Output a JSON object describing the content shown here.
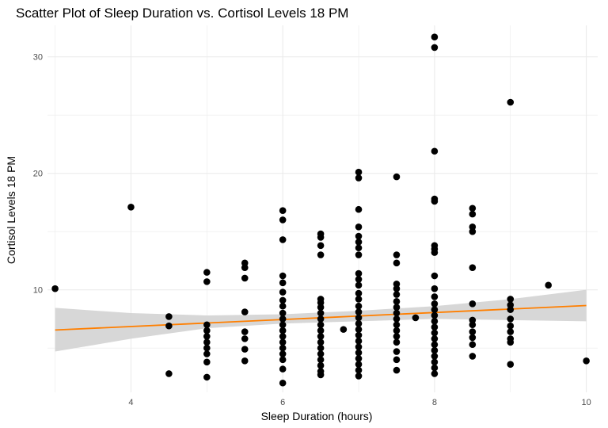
{
  "chart_data": {
    "type": "scatter",
    "title": "Scatter Plot of Sleep Duration vs. Cortisol Levels 18 PM",
    "xlabel": "Sleep Duration (hours)",
    "ylabel": "Cortisol Levels 18 PM",
    "xlim": [
      2.9,
      10.15
    ],
    "ylim": [
      1.2,
      32.7
    ],
    "x_ticks": [
      4,
      6,
      8,
      10
    ],
    "y_ticks": [
      10,
      20,
      30
    ],
    "grid": true,
    "colors": {
      "points": "#000000",
      "trend_line": "#ff7f00",
      "confidence_band": "#d3d3d3",
      "grid": "#ebebeb"
    },
    "points": [
      [
        3,
        10.1
      ],
      [
        4,
        17.1
      ],
      [
        4.5,
        7.7
      ],
      [
        4.5,
        6.9
      ],
      [
        4.5,
        2.8
      ],
      [
        5,
        11.5
      ],
      [
        5,
        10.7
      ],
      [
        5,
        7.0
      ],
      [
        5,
        6.5
      ],
      [
        5,
        6.0
      ],
      [
        5,
        5.5
      ],
      [
        5,
        5.0
      ],
      [
        5,
        4.5
      ],
      [
        5,
        3.8
      ],
      [
        5,
        2.5
      ],
      [
        5.5,
        12.3
      ],
      [
        5.5,
        11.9
      ],
      [
        5.5,
        11.0
      ],
      [
        5.5,
        8.1
      ],
      [
        5.5,
        6.4
      ],
      [
        5.5,
        5.8
      ],
      [
        5.5,
        4.9
      ],
      [
        5.5,
        3.9
      ],
      [
        6,
        16.8
      ],
      [
        6,
        16.0
      ],
      [
        6,
        14.3
      ],
      [
        6,
        11.2
      ],
      [
        6,
        10.6
      ],
      [
        6,
        9.8
      ],
      [
        6,
        9.1
      ],
      [
        6,
        8.6
      ],
      [
        6,
        8.0
      ],
      [
        6,
        7.5
      ],
      [
        6,
        7.0
      ],
      [
        6,
        6.5
      ],
      [
        6,
        6.0
      ],
      [
        6,
        5.5
      ],
      [
        6,
        5.0
      ],
      [
        6,
        4.5
      ],
      [
        6,
        4.0
      ],
      [
        6,
        3.2
      ],
      [
        6,
        2.0
      ],
      [
        6.5,
        14.8
      ],
      [
        6.5,
        14.5
      ],
      [
        6.5,
        13.8
      ],
      [
        6.5,
        13.0
      ],
      [
        6.5,
        9.2
      ],
      [
        6.5,
        8.9
      ],
      [
        6.5,
        8.5
      ],
      [
        6.5,
        8.0
      ],
      [
        6.5,
        7.5
      ],
      [
        6.5,
        7.0
      ],
      [
        6.5,
        6.5
      ],
      [
        6.5,
        6.0
      ],
      [
        6.5,
        5.5
      ],
      [
        6.5,
        5.0
      ],
      [
        6.5,
        4.5
      ],
      [
        6.5,
        4.0
      ],
      [
        6.5,
        3.5
      ],
      [
        6.5,
        3.0
      ],
      [
        6.5,
        2.7
      ],
      [
        6.8,
        6.6
      ],
      [
        7,
        20.1
      ],
      [
        7,
        19.6
      ],
      [
        7,
        16.9
      ],
      [
        7,
        15.4
      ],
      [
        7,
        14.6
      ],
      [
        7,
        14.1
      ],
      [
        7,
        13.6
      ],
      [
        7,
        13.0
      ],
      [
        7,
        11.4
      ],
      [
        7,
        10.9
      ],
      [
        7,
        10.4
      ],
      [
        7,
        9.7
      ],
      [
        7,
        9.2
      ],
      [
        7,
        8.6
      ],
      [
        7,
        8.1
      ],
      [
        7,
        7.6
      ],
      [
        7,
        7.1
      ],
      [
        7,
        6.6
      ],
      [
        7,
        6.1
      ],
      [
        7,
        5.6
      ],
      [
        7,
        5.1
      ],
      [
        7,
        4.6
      ],
      [
        7,
        4.1
      ],
      [
        7,
        3.6
      ],
      [
        7,
        3.1
      ],
      [
        7,
        2.6
      ],
      [
        7.5,
        19.7
      ],
      [
        7.5,
        13.0
      ],
      [
        7.5,
        12.3
      ],
      [
        7.5,
        10.5
      ],
      [
        7.5,
        10.1
      ],
      [
        7.5,
        9.6
      ],
      [
        7.5,
        9.0
      ],
      [
        7.5,
        8.5
      ],
      [
        7.5,
        8.0
      ],
      [
        7.5,
        7.5
      ],
      [
        7.5,
        7.0
      ],
      [
        7.5,
        6.5
      ],
      [
        7.5,
        6.0
      ],
      [
        7.5,
        5.5
      ],
      [
        7.5,
        4.7
      ],
      [
        7.5,
        4.0
      ],
      [
        7.5,
        3.1
      ],
      [
        7.75,
        7.6
      ],
      [
        8,
        31.7
      ],
      [
        8,
        30.8
      ],
      [
        8,
        21.9
      ],
      [
        8,
        17.8
      ],
      [
        8,
        17.6
      ],
      [
        8,
        13.8
      ],
      [
        8,
        13.5
      ],
      [
        8,
        13.2
      ],
      [
        8,
        11.2
      ],
      [
        8,
        10.1
      ],
      [
        8,
        9.4
      ],
      [
        8,
        8.8
      ],
      [
        8,
        8.3
      ],
      [
        8,
        7.8
      ],
      [
        8,
        7.3
      ],
      [
        8,
        6.8
      ],
      [
        8,
        6.3
      ],
      [
        8,
        5.8
      ],
      [
        8,
        5.3
      ],
      [
        8,
        4.8
      ],
      [
        8,
        4.3
      ],
      [
        8,
        3.8
      ],
      [
        8,
        3.3
      ],
      [
        8,
        2.8
      ],
      [
        8.5,
        17.0
      ],
      [
        8.5,
        16.5
      ],
      [
        8.5,
        15.4
      ],
      [
        8.5,
        15.0
      ],
      [
        8.5,
        11.9
      ],
      [
        8.5,
        8.8
      ],
      [
        8.5,
        7.4
      ],
      [
        8.5,
        7.0
      ],
      [
        8.5,
        6.4
      ],
      [
        8.5,
        5.9
      ],
      [
        8.5,
        5.3
      ],
      [
        8.5,
        4.3
      ],
      [
        9,
        26.1
      ],
      [
        9,
        9.2
      ],
      [
        9,
        8.7
      ],
      [
        9,
        8.3
      ],
      [
        9,
        7.5
      ],
      [
        9,
        6.9
      ],
      [
        9,
        6.4
      ],
      [
        9,
        5.8
      ],
      [
        9,
        5.5
      ],
      [
        9,
        3.6
      ],
      [
        9.5,
        10.4
      ],
      [
        10,
        3.9
      ]
    ],
    "trend_line": {
      "x": [
        3,
        10
      ],
      "y": [
        6.55,
        8.65
      ]
    },
    "confidence_band": {
      "x": [
        3,
        4,
        5,
        6,
        7,
        8,
        9,
        10
      ],
      "lower": [
        4.7,
        5.8,
        6.7,
        7.1,
        7.3,
        7.5,
        7.4,
        7.3
      ],
      "upper": [
        8.45,
        8.0,
        7.8,
        7.9,
        8.2,
        8.6,
        9.2,
        10.0
      ]
    }
  }
}
